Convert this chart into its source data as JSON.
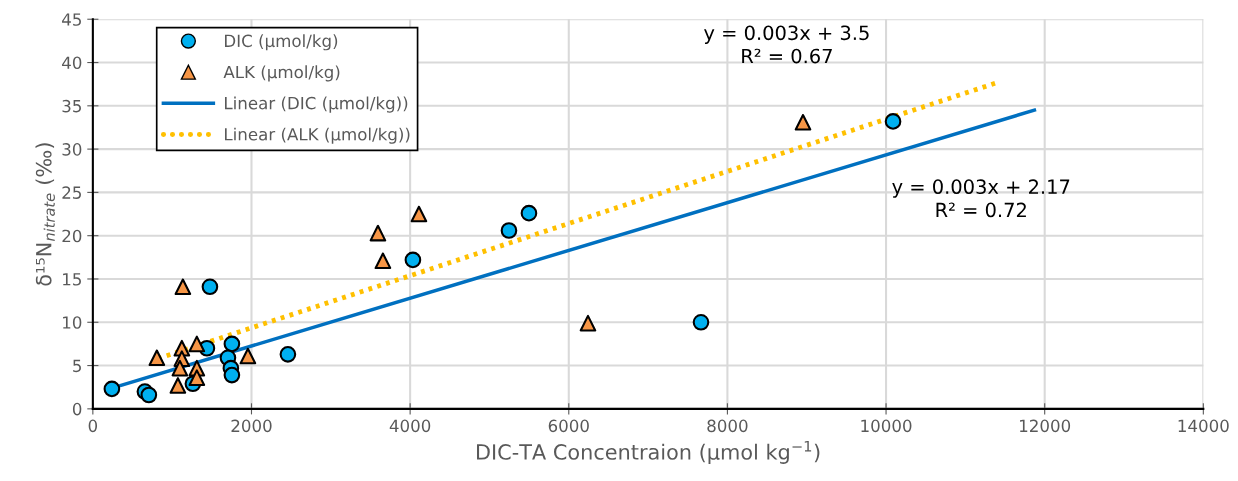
{
  "chart_data": {
    "type": "scatter",
    "xlabel": "DIC-TA Concentraion (µmol kg$^{−1}$)",
    "ylabel": "δ¹⁵N$_{nitrate}$ (‰)",
    "xlim": [
      0,
      14000
    ],
    "ylim": [
      0,
      45
    ],
    "xticks": [
      0,
      2000,
      4000,
      6000,
      8000,
      10000,
      12000,
      14000
    ],
    "yticks": [
      0,
      5,
      10,
      15,
      20,
      25,
      30,
      35,
      40,
      45
    ],
    "grid": true,
    "legend": "top left",
    "series": [
      {
        "name": "DIC (µmol/kg)",
        "marker": "circle",
        "color": "#00b0f0",
        "x": [
          240,
          656,
          706,
          1476,
          1261,
          1438,
          1753,
          1703,
          1740,
          1753,
          2459,
          4035,
          5246,
          5498,
          7667,
          10088
        ],
        "values": [
          2.3,
          2.0,
          1.6,
          14.1,
          2.9,
          7.0,
          7.5,
          5.9,
          4.7,
          3.9,
          6.3,
          17.2,
          20.6,
          22.6,
          10.0,
          33.2
        ]
      },
      {
        "name": "ALK (µmol/kg)",
        "marker": "triangle",
        "color": "#f79646",
        "x": [
          807,
          1135,
          1122,
          1122,
          1097,
          1072,
          1311,
          1311,
          1311,
          1955,
          3594,
          3657,
          4111,
          6242,
          8953
        ],
        "values": [
          5.9,
          14.1,
          7.0,
          5.8,
          4.7,
          2.7,
          7.5,
          4.7,
          3.6,
          6.1,
          20.3,
          17.1,
          22.5,
          9.9,
          33.1
        ]
      },
      {
        "name": "Linear (DIC (µmol/kg))",
        "type": "line",
        "line_style": "solid",
        "marker": "none",
        "color": "#0070c0",
        "x": [
          240,
          11870
        ],
        "values": [
          2.4,
          34.5
        ]
      },
      {
        "name": "Linear (ALK (µmol/kg))",
        "type": "line",
        "line_style": "dotted",
        "marker": "none",
        "color": "#ffc000",
        "x": [
          820,
          11374
        ],
        "values": [
          5.8,
          37.6
        ]
      }
    ],
    "annotations": [
      "y = 0.003x + 3.5\nR² = 0.67",
      "y = 0.003x + 2.17\nR² = 0.72"
    ]
  }
}
